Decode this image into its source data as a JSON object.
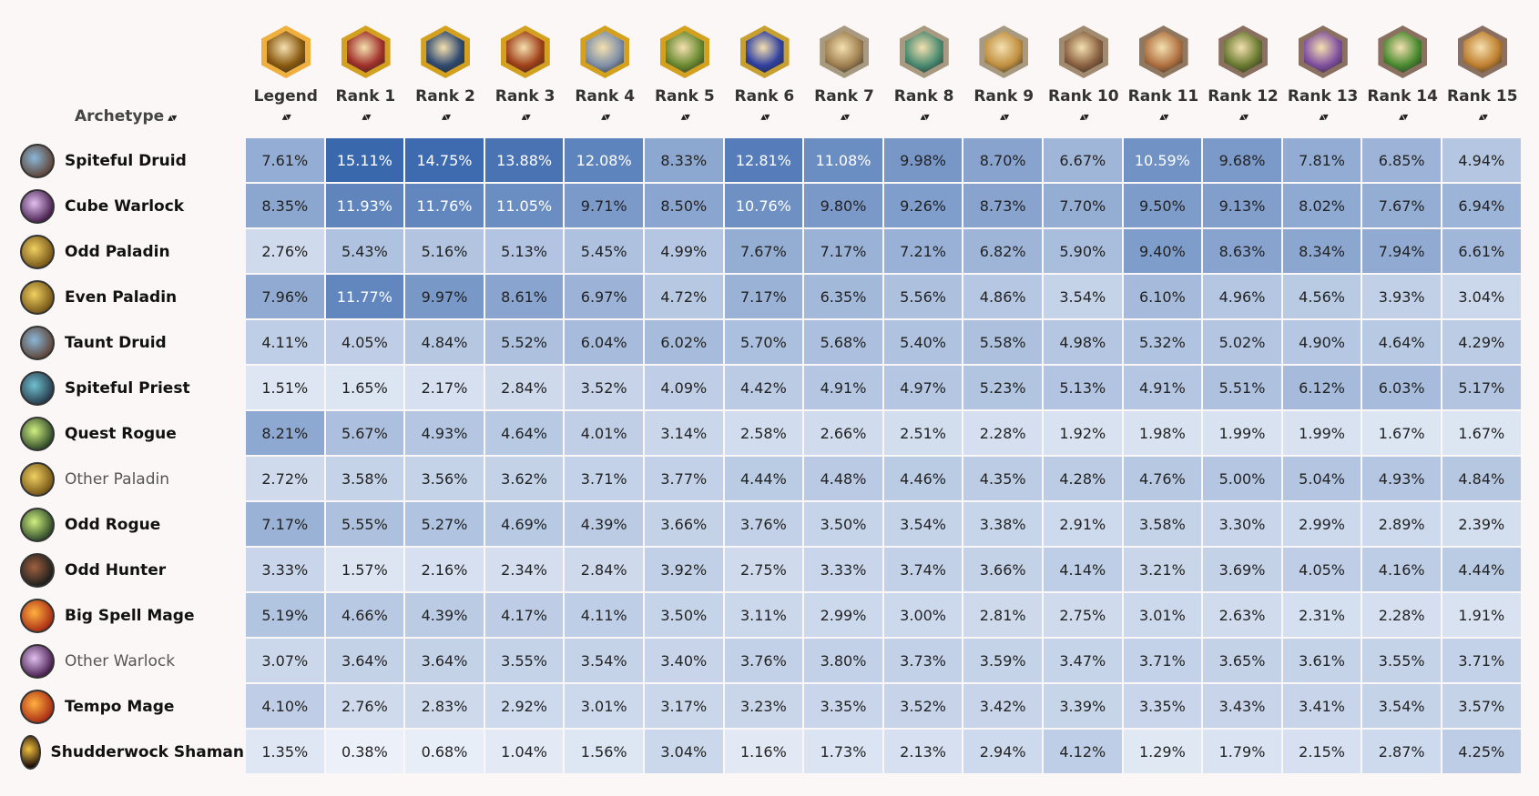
{
  "header": {
    "archetype_label": "Archetype",
    "sort_icon": "▴▾",
    "columns": [
      "Legend",
      "Rank 1",
      "Rank 2",
      "Rank 3",
      "Rank 4",
      "Rank 5",
      "Rank 6",
      "Rank 7",
      "Rank 8",
      "Rank 9",
      "Rank 10",
      "Rank 11",
      "Rank 12",
      "Rank 13",
      "Rank 14",
      "Rank 15"
    ]
  },
  "colors": {
    "low": "#f0f4fb",
    "high": "#3a68ad"
  },
  "rows": [
    {
      "name": "Spiteful Druid",
      "cls": "druid",
      "values": [
        "7.61%",
        "15.11%",
        "14.75%",
        "13.88%",
        "12.08%",
        "8.33%",
        "12.81%",
        "11.08%",
        "9.98%",
        "8.70%",
        "6.67%",
        "10.59%",
        "9.68%",
        "7.81%",
        "6.85%",
        "4.94%"
      ]
    },
    {
      "name": "Cube Warlock",
      "cls": "warlock",
      "values": [
        "8.35%",
        "11.93%",
        "11.76%",
        "11.05%",
        "9.71%",
        "8.50%",
        "10.76%",
        "9.80%",
        "9.26%",
        "8.73%",
        "7.70%",
        "9.50%",
        "9.13%",
        "8.02%",
        "7.67%",
        "6.94%"
      ]
    },
    {
      "name": "Odd Paladin",
      "cls": "paladin",
      "values": [
        "2.76%",
        "5.43%",
        "5.16%",
        "5.13%",
        "5.45%",
        "4.99%",
        "7.67%",
        "7.17%",
        "7.21%",
        "6.82%",
        "5.90%",
        "9.40%",
        "8.63%",
        "8.34%",
        "7.94%",
        "6.61%"
      ]
    },
    {
      "name": "Even Paladin",
      "cls": "paladin",
      "values": [
        "7.96%",
        "11.77%",
        "9.97%",
        "8.61%",
        "6.97%",
        "4.72%",
        "7.17%",
        "6.35%",
        "5.56%",
        "4.86%",
        "3.54%",
        "6.10%",
        "4.96%",
        "4.56%",
        "3.93%",
        "3.04%"
      ]
    },
    {
      "name": "Taunt Druid",
      "cls": "druid",
      "values": [
        "4.11%",
        "4.05%",
        "4.84%",
        "5.52%",
        "6.04%",
        "6.02%",
        "5.70%",
        "5.68%",
        "5.40%",
        "5.58%",
        "4.98%",
        "5.32%",
        "5.02%",
        "4.90%",
        "4.64%",
        "4.29%"
      ]
    },
    {
      "name": "Spiteful Priest",
      "cls": "priest",
      "values": [
        "1.51%",
        "1.65%",
        "2.17%",
        "2.84%",
        "3.52%",
        "4.09%",
        "4.42%",
        "4.91%",
        "4.97%",
        "5.23%",
        "5.13%",
        "4.91%",
        "5.51%",
        "6.12%",
        "6.03%",
        "5.17%"
      ]
    },
    {
      "name": "Quest Rogue",
      "cls": "rogue",
      "values": [
        "8.21%",
        "5.67%",
        "4.93%",
        "4.64%",
        "4.01%",
        "3.14%",
        "2.58%",
        "2.66%",
        "2.51%",
        "2.28%",
        "1.92%",
        "1.98%",
        "1.99%",
        "1.99%",
        "1.67%",
        "1.67%"
      ]
    },
    {
      "name": "Other Paladin",
      "cls": "paladin",
      "other": true,
      "values": [
        "2.72%",
        "3.58%",
        "3.56%",
        "3.62%",
        "3.71%",
        "3.77%",
        "4.44%",
        "4.48%",
        "4.46%",
        "4.35%",
        "4.28%",
        "4.76%",
        "5.00%",
        "5.04%",
        "4.93%",
        "4.84%"
      ]
    },
    {
      "name": "Odd Rogue",
      "cls": "rogue",
      "values": [
        "7.17%",
        "5.55%",
        "5.27%",
        "4.69%",
        "4.39%",
        "3.66%",
        "3.76%",
        "3.50%",
        "3.54%",
        "3.38%",
        "2.91%",
        "3.58%",
        "3.30%",
        "2.99%",
        "2.89%",
        "2.39%"
      ]
    },
    {
      "name": "Odd Hunter",
      "cls": "hunter",
      "values": [
        "3.33%",
        "1.57%",
        "2.16%",
        "2.34%",
        "2.84%",
        "3.92%",
        "2.75%",
        "3.33%",
        "3.74%",
        "3.66%",
        "4.14%",
        "3.21%",
        "3.69%",
        "4.05%",
        "4.16%",
        "4.44%"
      ]
    },
    {
      "name": "Big Spell Mage",
      "cls": "mage",
      "values": [
        "5.19%",
        "4.66%",
        "4.39%",
        "4.17%",
        "4.11%",
        "3.50%",
        "3.11%",
        "2.99%",
        "3.00%",
        "2.81%",
        "2.75%",
        "3.01%",
        "2.63%",
        "2.31%",
        "2.28%",
        "1.91%"
      ]
    },
    {
      "name": "Other Warlock",
      "cls": "warlock",
      "other": true,
      "values": [
        "3.07%",
        "3.64%",
        "3.64%",
        "3.55%",
        "3.54%",
        "3.40%",
        "3.76%",
        "3.80%",
        "3.73%",
        "3.59%",
        "3.47%",
        "3.71%",
        "3.65%",
        "3.61%",
        "3.55%",
        "3.71%"
      ]
    },
    {
      "name": "Tempo Mage",
      "cls": "mage",
      "values": [
        "4.10%",
        "2.76%",
        "2.83%",
        "2.92%",
        "3.01%",
        "3.17%",
        "3.23%",
        "3.35%",
        "3.52%",
        "3.42%",
        "3.39%",
        "3.35%",
        "3.43%",
        "3.41%",
        "3.54%",
        "3.57%"
      ]
    },
    {
      "name": "Shudderwock Shaman",
      "cls": "shaman",
      "values": [
        "1.35%",
        "0.38%",
        "0.68%",
        "1.04%",
        "1.56%",
        "3.04%",
        "1.16%",
        "1.73%",
        "2.13%",
        "2.94%",
        "4.12%",
        "1.29%",
        "1.79%",
        "2.15%",
        "2.87%",
        "4.25%"
      ]
    }
  ]
}
